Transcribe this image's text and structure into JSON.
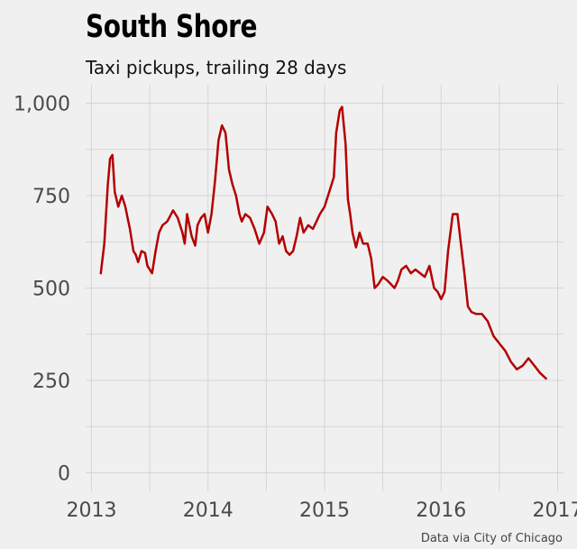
{
  "chart_data": {
    "type": "line",
    "title": "South Shore",
    "subtitle": "Taxi pickups, trailing 28 days",
    "caption": "Data via City of Chicago",
    "xlabel": "",
    "ylabel": "",
    "ylim": [
      -50,
      1050
    ],
    "xlim": [
      2012.95,
      2017.05
    ],
    "x_ticks": [
      2013,
      2014,
      2015,
      2016,
      2017
    ],
    "x_tick_labels": [
      "2013",
      "2014",
      "2015",
      "2016",
      "2017"
    ],
    "y_ticks": [
      0,
      250,
      500,
      750,
      1000
    ],
    "y_tick_labels": [
      "0",
      "250",
      "500",
      "750",
      "1,000"
    ],
    "grid": true,
    "series": [
      {
        "color": "#b30000",
        "x": [
          2013.08,
          2013.11,
          2013.14,
          2013.16,
          2013.18,
          2013.2,
          2013.23,
          2013.26,
          2013.29,
          2013.31,
          2013.33,
          2013.36,
          2013.38,
          2013.4,
          2013.43,
          2013.46,
          2013.48,
          2013.52,
          2013.55,
          2013.58,
          2013.61,
          2013.65,
          2013.7,
          2013.74,
          2013.78,
          2013.8,
          2013.82,
          2013.86,
          2013.89,
          2013.91,
          2013.94,
          2013.97,
          2014.0,
          2014.03,
          2014.06,
          2014.09,
          2014.12,
          2014.15,
          2014.18,
          2014.21,
          2014.24,
          2014.27,
          2014.29,
          2014.32,
          2014.36,
          2014.4,
          2014.44,
          2014.48,
          2014.51,
          2014.55,
          2014.58,
          2014.61,
          2014.64,
          2014.67,
          2014.7,
          2014.73,
          2014.76,
          2014.79,
          2014.82,
          2014.86,
          2014.9,
          2014.93,
          2014.96,
          2015.0,
          2015.04,
          2015.08,
          2015.1,
          2015.13,
          2015.15,
          2015.18,
          2015.2,
          2015.22,
          2015.24,
          2015.27,
          2015.3,
          2015.33,
          2015.37,
          2015.4,
          2015.43,
          2015.46,
          2015.5,
          2015.54,
          2015.57,
          2015.6,
          2015.63,
          2015.66,
          2015.7,
          2015.74,
          2015.78,
          2015.82,
          2015.86,
          2015.9,
          2015.94,
          2015.97,
          2016.0,
          2016.03,
          2016.06,
          2016.1,
          2016.14,
          2016.17,
          2016.2,
          2016.23,
          2016.26,
          2016.3,
          2016.35,
          2016.4,
          2016.45,
          2016.5,
          2016.55,
          2016.6,
          2016.65,
          2016.7,
          2016.75,
          2016.8,
          2016.85,
          2016.9
        ],
        "values": [
          540,
          620,
          780,
          850,
          860,
          760,
          720,
          750,
          720,
          690,
          660,
          600,
          590,
          570,
          600,
          595,
          560,
          540,
          600,
          650,
          670,
          680,
          710,
          690,
          650,
          620,
          700,
          640,
          615,
          670,
          690,
          700,
          650,
          700,
          790,
          900,
          940,
          920,
          820,
          780,
          750,
          700,
          680,
          700,
          690,
          660,
          620,
          650,
          720,
          700,
          680,
          620,
          640,
          600,
          590,
          600,
          640,
          690,
          650,
          670,
          660,
          680,
          700,
          720,
          760,
          800,
          920,
          980,
          990,
          890,
          740,
          700,
          650,
          610,
          650,
          620,
          620,
          580,
          500,
          510,
          530,
          520,
          510,
          500,
          520,
          550,
          560,
          540,
          550,
          540,
          530,
          560,
          500,
          490,
          470,
          490,
          600,
          700,
          700,
          620,
          540,
          450,
          435,
          430,
          430,
          410,
          370,
          350,
          330,
          300,
          280,
          290,
          310,
          290,
          270,
          255
        ]
      }
    ]
  }
}
